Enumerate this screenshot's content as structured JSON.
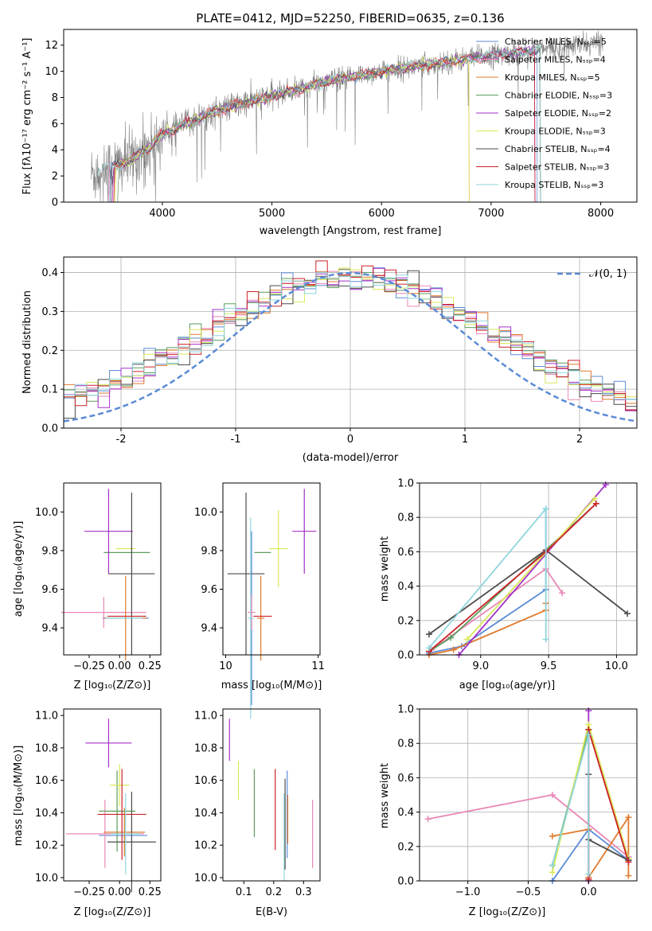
{
  "chart_data": [
    {
      "id": "spectrum",
      "type": "line",
      "title": "PLATE=0412, MJD=52250, FIBERID=0635, z=0.136",
      "xlabel": "wavelength [Angstrom, rest frame]",
      "ylabel": "Flux [fλ10⁻¹⁷ erg cm⁻² s⁻¹ A⁻¹]",
      "xlim": [
        3100,
        8330
      ],
      "ylim": [
        0,
        13.2
      ],
      "xticks": [
        4000,
        5000,
        6000,
        7000,
        8000
      ],
      "yticks": [
        0,
        2,
        4,
        6,
        8,
        10,
        12
      ],
      "grid": false,
      "legend_position": "right",
      "data_series": {
        "name": "",
        "color": "#808080",
        "x_range": [
          3350,
          8020
        ]
      },
      "models": [
        {
          "name": "Chabrier MILES, Nₛₛₚ=5",
          "color": "#5b8bd6"
        },
        {
          "name": "Salpeter MILES, Nₛₛₚ=4",
          "color": "#e987b6"
        },
        {
          "name": "Kroupa MILES, Nₛₛₚ=5",
          "color": "#e07a2c"
        },
        {
          "name": "Chabrier ELODIE, Nₛₛₚ=3",
          "color": "#5e9c5e"
        },
        {
          "name": "Salpeter ELODIE, Nₛₛₚ=2",
          "color": "#a431c8"
        },
        {
          "name": "Kroupa ELODIE, Nₛₛₚ=3",
          "color": "#dbe85a"
        },
        {
          "name": "Chabrier STELIB, Nₛₛₚ=4",
          "color": "#4b4b4b"
        },
        {
          "name": "Salpeter STELIB, Nₛₛₚ=3",
          "color": "#cc2229"
        },
        {
          "name": "Kroupa STELIB, Nₛₛₚ=3",
          "color": "#8fd6dc"
        }
      ],
      "continuum": [
        [
          3350,
          2.1
        ],
        [
          3500,
          2.6
        ],
        [
          3700,
          3.1
        ],
        [
          3900,
          4.3
        ],
        [
          4000,
          5.2
        ],
        [
          4300,
          6.3
        ],
        [
          4500,
          7.0
        ],
        [
          5000,
          8.1
        ],
        [
          5500,
          9.2
        ],
        [
          6000,
          10.0
        ],
        [
          6500,
          10.6
        ],
        [
          7000,
          11.2
        ],
        [
          7500,
          11.7
        ],
        [
          8000,
          12.2
        ]
      ]
    },
    {
      "id": "residuals",
      "type": "area",
      "xlabel": "(data-model)/error",
      "ylabel": "Normed distribution",
      "xlim": [
        -2.5,
        2.5
      ],
      "ylim": [
        0,
        0.44
      ],
      "xticks": [
        -2,
        -1,
        0,
        1,
        2
      ],
      "yticks": [
        0.0,
        0.1,
        0.2,
        0.3,
        0.4
      ],
      "grid": true,
      "legend": "𝒩(0, 1)",
      "legend_position": "top-right",
      "bin_width": 0.1,
      "reference_curve": "gaussian, mean 0, sigma 1"
    },
    {
      "id": "age-vs-Z",
      "type": "scatter",
      "xlabel": "Z [log₁₀(Z/Z⊙)]",
      "ylabel": "age  [log₁₀(age/yr)]",
      "xlim": [
        -0.46,
        0.34
      ],
      "ylim": [
        9.26,
        10.15
      ],
      "xticks": [
        -0.25,
        0.0,
        0.25
      ],
      "yticks": [
        9.4,
        9.6,
        9.8,
        10.0
      ],
      "grid": false,
      "points": [
        {
          "x": 0.05,
          "xerr": 0.19,
          "y": 9.45,
          "yerr": 0.0
        },
        {
          "x": -0.13,
          "xerr": 0.35,
          "y": 9.48,
          "yerr": 0.08
        },
        {
          "x": 0.05,
          "xerr": 0.17,
          "y": 9.45,
          "yerr": 0.22
        },
        {
          "x": 0.06,
          "xerr": 0.19,
          "y": 9.79,
          "yerr": 0.0
        },
        {
          "x": -0.09,
          "xerr": 0.2,
          "y": 9.9,
          "yerr": 0.22
        },
        {
          "x": 0.05,
          "xerr": 0.08,
          "y": 9.81,
          "yerr": 0.0
        },
        {
          "x": 0.1,
          "xerr": 0.19,
          "y": 9.68,
          "yerr": 0.42
        },
        {
          "x": 0.06,
          "xerr": 0.16,
          "y": 9.46,
          "yerr": 0.0
        },
        {
          "x": 0.04,
          "xerr": 0.15,
          "y": 9.45,
          "yerr": 0.0
        }
      ]
    },
    {
      "id": "age-vs-mass",
      "type": "scatter",
      "xlabel": "mass [log₁₀(M/M⊙)]",
      "ylabel": "",
      "xlim": [
        9.97,
        11.02
      ],
      "ylim": [
        9.26,
        10.15
      ],
      "xticks": [
        10,
        11
      ],
      "yticks": [
        9.4,
        9.6,
        9.8,
        10.0
      ],
      "grid": false,
      "points": [
        {
          "x": 10.28,
          "xerr": 0.0,
          "y": 9.45,
          "yerr": 0.45
        },
        {
          "x": 10.28,
          "xerr": 0.04,
          "y": 9.48,
          "yerr": 0.09
        },
        {
          "x": 10.38,
          "xerr": 0.04,
          "y": 9.45,
          "yerr": 0.22
        },
        {
          "x": 10.4,
          "xerr": 0.09,
          "y": 9.79,
          "yerr": 0.0
        },
        {
          "x": 10.85,
          "xerr": 0.13,
          "y": 9.9,
          "yerr": 0.22
        },
        {
          "x": 10.57,
          "xerr": 0.1,
          "y": 9.81,
          "yerr": 0.2
        },
        {
          "x": 10.22,
          "xerr": 0.2,
          "y": 9.68,
          "yerr": 0.42
        },
        {
          "x": 10.4,
          "xerr": 0.1,
          "y": 9.46,
          "yerr": 0.0
        },
        {
          "x": 10.27,
          "xerr": 0.03,
          "y": 9.45,
          "yerr": 0.52
        }
      ]
    },
    {
      "id": "mass-weight-vs-age",
      "type": "line",
      "xlabel": "age  [log₁₀(age/yr)]",
      "ylabel": "mass weight",
      "xlim": [
        8.55,
        10.15
      ],
      "ylim": [
        0,
        1.0
      ],
      "xticks": [
        9.0,
        9.5,
        10.0
      ],
      "yticks": [
        0.0,
        0.2,
        0.4,
        0.6,
        0.8,
        1.0
      ],
      "grid": true
    },
    {
      "id": "mass-vs-Z",
      "type": "scatter",
      "xlabel": "Z [log₁₀(Z/Z⊙)]",
      "ylabel": "mass [log₁₀(M/M⊙)]",
      "xlim": [
        -0.46,
        0.34
      ],
      "ylim": [
        9.98,
        11.04
      ],
      "xticks": [
        -0.25,
        0.0,
        0.25
      ],
      "yticks": [
        10.0,
        10.2,
        10.4,
        10.6,
        10.8,
        11.0
      ],
      "grid": false,
      "points": [
        {
          "x": 0.03,
          "xerr": 0.2,
          "y": 10.26,
          "yerr": 0.0
        },
        {
          "x": -0.12,
          "xerr": 0.32,
          "y": 10.27,
          "yerr": 0.21
        },
        {
          "x": 0.04,
          "xerr": 0.17,
          "y": 10.28,
          "yerr": 0.15
        },
        {
          "x": -0.02,
          "xerr": 0.15,
          "y": 10.41,
          "yerr": 0.25
        },
        {
          "x": -0.09,
          "xerr": 0.19,
          "y": 10.83,
          "yerr": 0.15
        },
        {
          "x": 0.0,
          "xerr": 0.08,
          "y": 10.57,
          "yerr": 0.13
        },
        {
          "x": 0.1,
          "xerr": 0.2,
          "y": 10.22,
          "yerr": 0.31
        },
        {
          "x": 0.02,
          "xerr": 0.2,
          "y": 10.39,
          "yerr": 0.28
        },
        {
          "x": 0.05,
          "xerr": 0.12,
          "y": 10.27,
          "yerr": 0.25
        }
      ]
    },
    {
      "id": "mass-vs-EBV",
      "type": "scatter",
      "xlabel": "E(B-V)",
      "ylabel": "",
      "xlim": [
        0.03,
        0.355
      ],
      "ylim": [
        9.98,
        11.04
      ],
      "xticks": [
        0.1,
        0.2,
        0.3
      ],
      "yticks": [
        10.0,
        10.2,
        10.4,
        10.6,
        10.8,
        11.0
      ],
      "grid": false,
      "points": [
        {
          "x": 0.245,
          "y": 10.39,
          "yerr": 0.27
        },
        {
          "x": 0.33,
          "y": 10.27,
          "yerr": 0.21
        },
        {
          "x": 0.247,
          "y": 10.36,
          "yerr": 0.15
        },
        {
          "x": 0.135,
          "y": 10.46,
          "yerr": 0.21
        },
        {
          "x": 0.052,
          "y": 10.85,
          "yerr": 0.13
        },
        {
          "x": 0.082,
          "y": 10.6,
          "yerr": 0.12
        },
        {
          "x": 0.238,
          "y": 10.33,
          "yerr": 0.28
        },
        {
          "x": 0.205,
          "y": 10.42,
          "yerr": 0.25
        },
        {
          "x": 0.235,
          "y": 10.25,
          "yerr": 0.27
        }
      ]
    },
    {
      "id": "mass-weight-vs-Z",
      "type": "line",
      "xlabel": "Z [log₁₀(Z/Z⊙)]",
      "ylabel": "mass weight",
      "xlim": [
        -1.4,
        0.4
      ],
      "ylim": [
        0,
        1.0
      ],
      "xticks": [
        -1.0,
        -0.5,
        0.0
      ],
      "yticks": [
        0.0,
        0.2,
        0.4,
        0.6,
        0.8,
        1.0
      ],
      "grid": true
    }
  ]
}
